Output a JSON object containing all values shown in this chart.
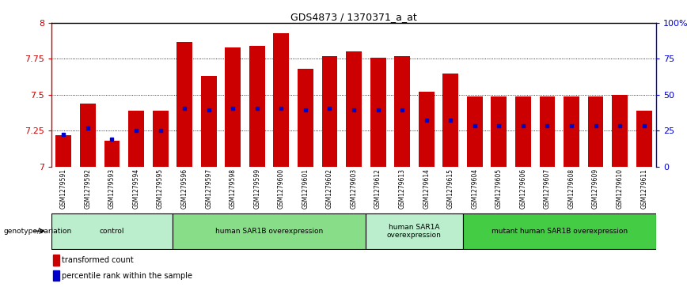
{
  "title": "GDS4873 / 1370371_a_at",
  "samples": [
    "GSM1279591",
    "GSM1279592",
    "GSM1279593",
    "GSM1279594",
    "GSM1279595",
    "GSM1279596",
    "GSM1279597",
    "GSM1279598",
    "GSM1279599",
    "GSM1279600",
    "GSM1279601",
    "GSM1279602",
    "GSM1279603",
    "GSM1279612",
    "GSM1279613",
    "GSM1279614",
    "GSM1279615",
    "GSM1279604",
    "GSM1279605",
    "GSM1279606",
    "GSM1279607",
    "GSM1279608",
    "GSM1279609",
    "GSM1279610",
    "GSM1279611"
  ],
  "bar_values": [
    7.22,
    7.44,
    7.18,
    7.39,
    7.39,
    7.87,
    7.63,
    7.83,
    7.84,
    7.93,
    7.68,
    7.77,
    7.8,
    7.76,
    7.77,
    7.52,
    7.65,
    7.49,
    7.49,
    7.49,
    7.49,
    7.49,
    7.49,
    7.5,
    7.39
  ],
  "blue_dot_values": [
    7.225,
    7.265,
    7.19,
    7.25,
    7.25,
    7.405,
    7.395,
    7.405,
    7.405,
    7.405,
    7.395,
    7.405,
    7.395,
    7.395,
    7.395,
    7.325,
    7.325,
    7.285,
    7.285,
    7.285,
    7.285,
    7.285,
    7.285,
    7.285,
    7.285
  ],
  "groups": [
    {
      "label": "control",
      "start": 0,
      "end": 5,
      "color": "#bbeecc"
    },
    {
      "label": "human SAR1B overexpression",
      "start": 5,
      "end": 13,
      "color": "#88dd88"
    },
    {
      "label": "human SAR1A\noverexpression",
      "start": 13,
      "end": 17,
      "color": "#bbeecc"
    },
    {
      "label": "mutant human SAR1B overexpression",
      "start": 17,
      "end": 25,
      "color": "#44cc44"
    }
  ],
  "ylim": [
    7.0,
    8.0
  ],
  "yticks": [
    7.0,
    7.25,
    7.5,
    7.75,
    8.0
  ],
  "ytick_labels": [
    "7",
    "7.25",
    "7.5",
    "7.75",
    "8"
  ],
  "right_yticks": [
    0,
    25,
    50,
    75,
    100
  ],
  "right_ytick_labels": [
    "0",
    "25",
    "50",
    "75",
    "100%"
  ],
  "bar_color": "#cc0000",
  "blue_dot_color": "#0000cc",
  "background_color": "#ffffff",
  "title_color": "#000000",
  "ytick_color": "#cc0000",
  "right_ytick_color": "#0000cc",
  "genotype_label": "genotype/variation",
  "legend_items": [
    {
      "color": "#cc0000",
      "label": "transformed count"
    },
    {
      "color": "#0000cc",
      "label": "percentile rank within the sample"
    }
  ]
}
